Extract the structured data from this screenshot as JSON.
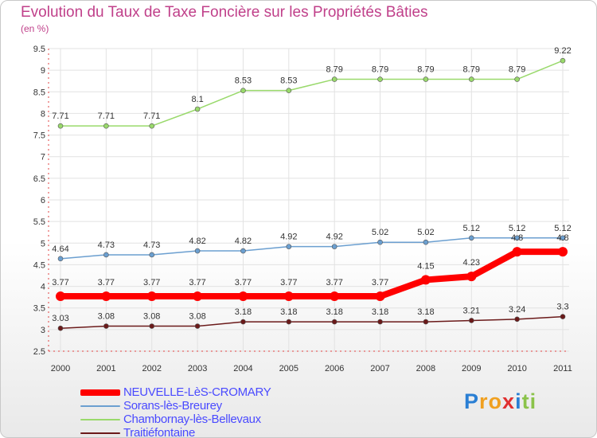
{
  "chart_data": {
    "type": "line",
    "title": "Evolution du Taux de Taxe Foncière sur les Propriétés Bâties",
    "subtitle": "(en %)",
    "x": [
      "2000",
      "2001",
      "2002",
      "2003",
      "2004",
      "2005",
      "2006",
      "2007",
      "2008",
      "2009",
      "2010",
      "2011"
    ],
    "ylim": [
      2.5,
      9.5
    ],
    "yticks": [
      "2.5",
      "3",
      "3.5",
      "4",
      "4.5",
      "5",
      "5.5",
      "6",
      "6.5",
      "7",
      "7.5",
      "8",
      "8.5",
      "9",
      "9.5"
    ],
    "grid": true,
    "legend_position": "bottom-left",
    "series": [
      {
        "name": "Traitiéfontaine",
        "color": "#6b1a1a",
        "values": [
          3.03,
          3.08,
          3.08,
          3.08,
          3.18,
          3.18,
          3.18,
          3.18,
          3.18,
          3.21,
          3.24,
          3.3
        ],
        "labels": [
          "3.03",
          "3.08",
          "3.08",
          "3.08",
          "3.18",
          "3.18",
          "3.18",
          "3.18",
          "3.18",
          "3.21",
          "3.24",
          "3.3"
        ]
      },
      {
        "name": "Sorans-lès-Breurey",
        "color": "#6b9fd0",
        "values": [
          4.64,
          4.73,
          4.73,
          4.82,
          4.82,
          4.92,
          4.92,
          5.02,
          5.02,
          5.12,
          5.12,
          5.12
        ],
        "labels": [
          "4.64",
          "4.73",
          "4.73",
          "4.82",
          "4.82",
          "4.92",
          "4.92",
          "5.02",
          "5.02",
          "5.12",
          "5.12",
          "5.12"
        ]
      },
      {
        "name": "Chambornay-lès-Bellevaux",
        "color": "#99d96b",
        "values": [
          7.71,
          7.71,
          7.71,
          8.1,
          8.53,
          8.53,
          8.79,
          8.79,
          8.79,
          8.79,
          8.79,
          9.22
        ],
        "labels": [
          "7.71",
          "7.71",
          "7.71",
          "8.1",
          "8.53",
          "8.53",
          "8.79",
          "8.79",
          "8.79",
          "8.79",
          "8.79",
          "9.22"
        ]
      },
      {
        "name": "NEUVELLE-LèS-CROMARY",
        "color": "#ff0000",
        "values": [
          3.77,
          3.77,
          3.77,
          3.77,
          3.77,
          3.77,
          3.77,
          3.77,
          4.15,
          4.23,
          4.8,
          4.8
        ],
        "labels": [
          "3.77",
          "3.77",
          "3.77",
          "3.77",
          "3.77",
          "3.77",
          "3.77",
          "3.77",
          "4.15",
          "4.23",
          "4.8",
          "4.8"
        ]
      }
    ],
    "legend": [
      {
        "name": "NEUVELLE-LèS-CROMARY",
        "color": "#ff0000",
        "thick": true
      },
      {
        "name": "Sorans-lès-Breurey",
        "color": "#6b9fd0",
        "thick": false
      },
      {
        "name": "Chambornay-lès-Bellevaux",
        "color": "#99d96b",
        "thick": false
      },
      {
        "name": "Traitiéfontaine",
        "color": "#6b1a1a",
        "thick": false
      }
    ]
  },
  "logo": {
    "letters": [
      "P",
      "r",
      "o",
      "x",
      "i",
      "t",
      "i"
    ],
    "colors": [
      "#2a7fd4",
      "#f0a020",
      "#f0a020",
      "#e03030",
      "#2a7fd4",
      "#8bc34a",
      "#8bc34a"
    ]
  }
}
